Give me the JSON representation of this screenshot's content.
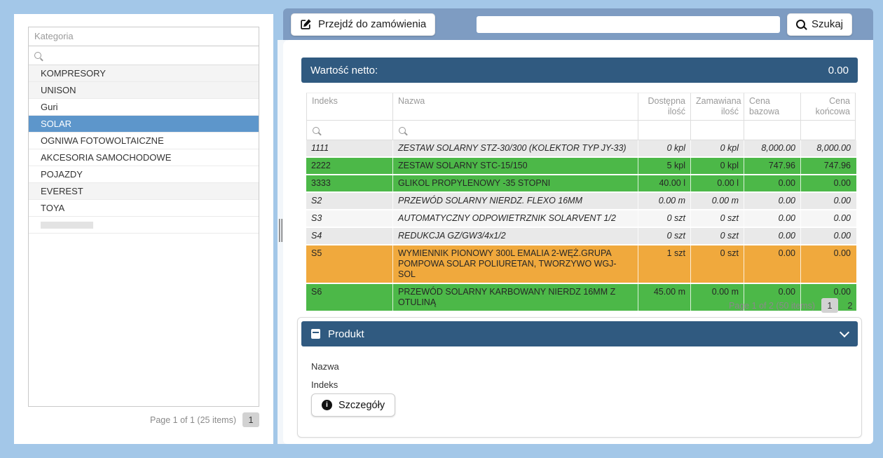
{
  "colors": {
    "page_bg": "#a3c7e8",
    "toolbar_bg": "#7e9cc2",
    "bar_bg": "#305a80",
    "selected_category": "#5d96cb",
    "green_row": "#4cb848",
    "orange_row": "#f0a93d",
    "muted_row": "#e9e9e9",
    "plain_row": "#f6f6f6",
    "cat_gray_row": "#f4f4f4"
  },
  "category_panel": {
    "header": "Kategoria",
    "items": [
      {
        "label": "KOMPRESORY",
        "bg": "gray"
      },
      {
        "label": "UNISON",
        "bg": "gray"
      },
      {
        "label": "Guri",
        "bg": "white"
      },
      {
        "label": "SOLAR",
        "bg": "selected"
      },
      {
        "label": "OGNIWA FOTOWOLTAICZNE",
        "bg": "white"
      },
      {
        "label": "AKCESORIA SAMOCHODOWE",
        "bg": "white"
      },
      {
        "label": "POJAZDY",
        "bg": "white"
      },
      {
        "label": "EVEREST",
        "bg": "gray"
      },
      {
        "label": "TOYA",
        "bg": "white"
      },
      {
        "label": "",
        "bg": "placeholder"
      }
    ],
    "pager": {
      "summary": "Page 1 of 1 (25 items)",
      "pages": [
        "1"
      ],
      "current": "1"
    }
  },
  "toolbar": {
    "order_button": "Przejdź do zamówienia",
    "search_value": "",
    "search_button": "Szukaj"
  },
  "net_value_bar": {
    "label": "Wartość netto:",
    "value": "0.00"
  },
  "products_table": {
    "columns": [
      "Indeks",
      "Nazwa",
      "Dostępna ilość",
      "Zamawiana ilość",
      "Cena bazowa",
      "Cena końcowa"
    ],
    "rows": [
      {
        "indeks": "1111",
        "nazwa": "ZESTAW SOLARNY STZ-30/300 (KOLEKTOR TYP JY-33)",
        "dostepna": "0 kpl",
        "zamawiana": "0 kpl",
        "cena_bazowa": "8,000.00",
        "cena_koncowa": "8,000.00",
        "style": "muted"
      },
      {
        "indeks": "2222",
        "nazwa": "ZESTAW SOLARNY STC-15/150",
        "dostepna": "5 kpl",
        "zamawiana": "0 kpl",
        "cena_bazowa": "747.96",
        "cena_koncowa": "747.96",
        "style": "green"
      },
      {
        "indeks": "3333",
        "nazwa": "GLIKOL PROPYLENOWY -35 STOPNI",
        "dostepna": "40.00 l",
        "zamawiana": "0.00 l",
        "cena_bazowa": "0.00",
        "cena_koncowa": "0.00",
        "style": "green"
      },
      {
        "indeks": "S2",
        "nazwa": "PRZEWÓD SOLARNY NIERDZ. FLEXO 16MM",
        "dostepna": "0.00 m",
        "zamawiana": "0.00 m",
        "cena_bazowa": "0.00",
        "cena_koncowa": "0.00",
        "style": "muted"
      },
      {
        "indeks": "S3",
        "nazwa": "AUTOMATYCZNY ODPOWIETRZNIK SOLARVENT 1/2",
        "dostepna": "0 szt",
        "zamawiana": "0 szt",
        "cena_bazowa": "0.00",
        "cena_koncowa": "0.00",
        "style": "plain"
      },
      {
        "indeks": "S4",
        "nazwa": "REDUKCJA GZ/GW3/4x1/2",
        "dostepna": "0 szt",
        "zamawiana": "0 szt",
        "cena_bazowa": "0.00",
        "cena_koncowa": "0.00",
        "style": "muted"
      },
      {
        "indeks": "S5",
        "nazwa": "WYMIENNIK PIONOWY 300L EMALIA 2-WĘŻ.GRUPA POMPOWA SOLAR POLIURETAN, TWORZYWO WGJ-SOL",
        "dostepna": "1 szt",
        "zamawiana": "0 szt",
        "cena_bazowa": "0.00",
        "cena_koncowa": "0.00",
        "style": "orange"
      },
      {
        "indeks": "S6",
        "nazwa": "PRZEWÓD SOLARNY KARBOWANY NIERDZ 16MM Z OTULINĄ",
        "dostepna": "45.00 m",
        "zamawiana": "0.00 m",
        "cena_bazowa": "0.00",
        "cena_koncowa": "0.00",
        "style": "green"
      }
    ],
    "pager": {
      "summary": "Page 1 of 2 (50 items)",
      "pages": [
        "1",
        "2"
      ],
      "current": "1"
    }
  },
  "product_panel": {
    "title": "Produkt",
    "fields": [
      {
        "label": "Nazwa"
      },
      {
        "label": "Indeks"
      }
    ],
    "details_button": "Szczegóły"
  }
}
